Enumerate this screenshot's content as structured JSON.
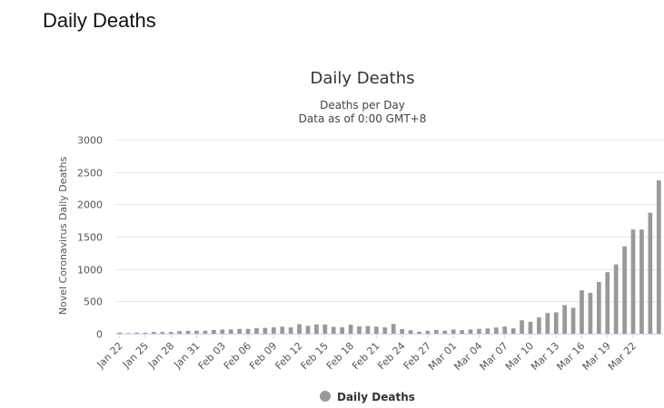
{
  "page": {
    "heading": "Daily Deaths"
  },
  "chart_data": {
    "type": "bar",
    "title": "Daily Deaths",
    "subtitle_line1": "Deaths per Day",
    "subtitle_line2": "Data as of 0:00 GMT+8",
    "xlabel": "",
    "ylabel": "Novel Coronavirus Daily Deaths",
    "ylim": [
      0,
      3000
    ],
    "yticks": [
      0,
      500,
      1000,
      1500,
      2000,
      2500,
      3000
    ],
    "ytick_labels": [
      "0",
      "500",
      "1000",
      "1500",
      "2000",
      "2500",
      "3000"
    ],
    "xtick_labels": [
      "Jan 22",
      "Jan 25",
      "Jan 28",
      "Jan 31",
      "Feb 03",
      "Feb 06",
      "Feb 09",
      "Feb 12",
      "Feb 15",
      "Feb 18",
      "Feb 21",
      "Feb 24",
      "Feb 27",
      "Mar 01",
      "Mar 04",
      "Mar 07",
      "Mar 10",
      "Mar 13",
      "Mar 16",
      "Mar 19",
      "Mar 22"
    ],
    "grid": true,
    "legend": "bottom-center",
    "color": "#999999",
    "series": [
      {
        "name": "Daily Deaths",
        "values": [
          17,
          8,
          16,
          14,
          26,
          25,
          26,
          38,
          43,
          46,
          45,
          57,
          64,
          66,
          73,
          73,
          86,
          89,
          97,
          108,
          97,
          146,
          121,
          143,
          142,
          105,
          98,
          139,
          112,
          118,
          109,
          97,
          150,
          71,
          52,
          29,
          44,
          58,
          47,
          64,
          54,
          65,
          74,
          81,
          95,
          110,
          82,
          207,
          183,
          250,
          319,
          330,
          440,
          400,
          670,
          630,
          800,
          950,
          1070,
          1350,
          1610,
          1610,
          1870,
          2370
        ]
      }
    ]
  }
}
